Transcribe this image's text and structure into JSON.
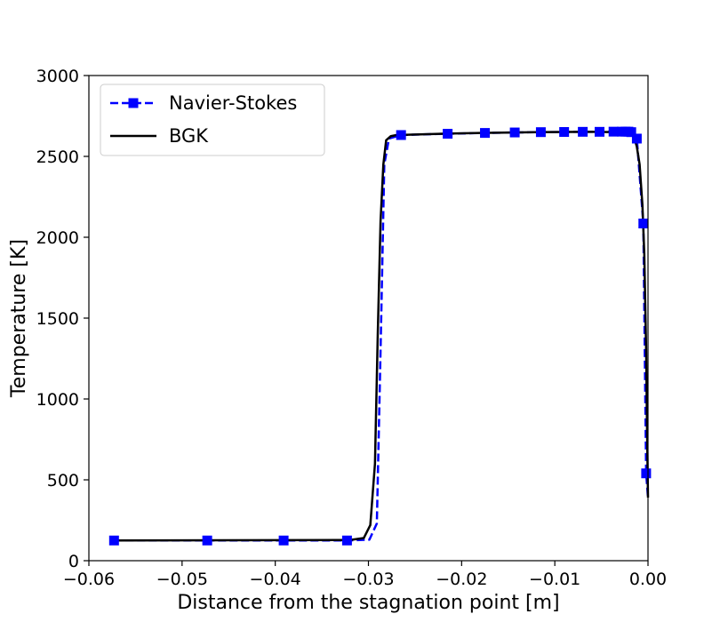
{
  "chart_data": {
    "type": "line",
    "title": "",
    "xlabel": "Distance from the stagnation point [m]",
    "ylabel": "Temperature [K]",
    "xlim": [
      -0.06,
      0.0
    ],
    "ylim": [
      0,
      3000
    ],
    "xticks": [
      -0.06,
      -0.05,
      -0.04,
      -0.03,
      -0.02,
      -0.01,
      0.0
    ],
    "xtick_labels": [
      "−0.06",
      "−0.05",
      "−0.04",
      "−0.03",
      "−0.02",
      "−0.01",
      "0.00"
    ],
    "yticks": [
      0,
      500,
      1000,
      1500,
      2000,
      2500,
      3000
    ],
    "ytick_labels": [
      "0",
      "500",
      "1000",
      "1500",
      "2000",
      "2500",
      "3000"
    ],
    "grid": false,
    "legend_position": "top-left",
    "series": [
      {
        "name": "Navier-Stokes",
        "color": "#0000ff",
        "line_style": "dashed",
        "marker": "square",
        "x": [
          -0.0573,
          -0.0473,
          -0.0391,
          -0.0323,
          -0.0299,
          -0.0291,
          -0.0287,
          -0.0283,
          -0.0278,
          -0.0265,
          -0.0215,
          -0.0175,
          -0.0143,
          -0.0115,
          -0.009,
          -0.007,
          -0.0052,
          -0.0037,
          -0.0028,
          -0.0024,
          -0.0021,
          -0.0018,
          -0.0012,
          -0.0005,
          -0.0002,
          0.0
        ],
        "y": [
          125,
          125,
          125,
          125,
          130,
          230,
          1300,
          2450,
          2610,
          2632,
          2640,
          2645,
          2648,
          2650,
          2651,
          2652,
          2652,
          2653,
          2653,
          2653,
          2653,
          2650,
          2610,
          2085,
          540,
          390
        ],
        "markers": [
          true,
          true,
          true,
          true,
          false,
          false,
          false,
          false,
          false,
          true,
          true,
          true,
          true,
          true,
          true,
          true,
          true,
          true,
          true,
          true,
          true,
          true,
          true,
          true,
          true,
          false
        ]
      },
      {
        "name": "BGK",
        "color": "#000000",
        "line_style": "solid",
        "marker": "none",
        "x": [
          -0.0573,
          -0.032,
          -0.0305,
          -0.0298,
          -0.0293,
          -0.029,
          -0.0287,
          -0.0284,
          -0.0281,
          -0.0276,
          -0.027,
          -0.022,
          -0.018,
          -0.012,
          -0.006,
          -0.003,
          -0.002,
          -0.0015,
          -0.0012,
          -0.0009,
          -0.0006,
          -0.0004,
          -0.0002,
          -0.0001,
          0.0
        ],
        "y": [
          125,
          128,
          140,
          220,
          600,
          1400,
          2100,
          2450,
          2600,
          2625,
          2632,
          2640,
          2645,
          2650,
          2652,
          2650,
          2640,
          2620,
          2560,
          2450,
          2200,
          1900,
          1300,
          800,
          390
        ]
      }
    ]
  }
}
